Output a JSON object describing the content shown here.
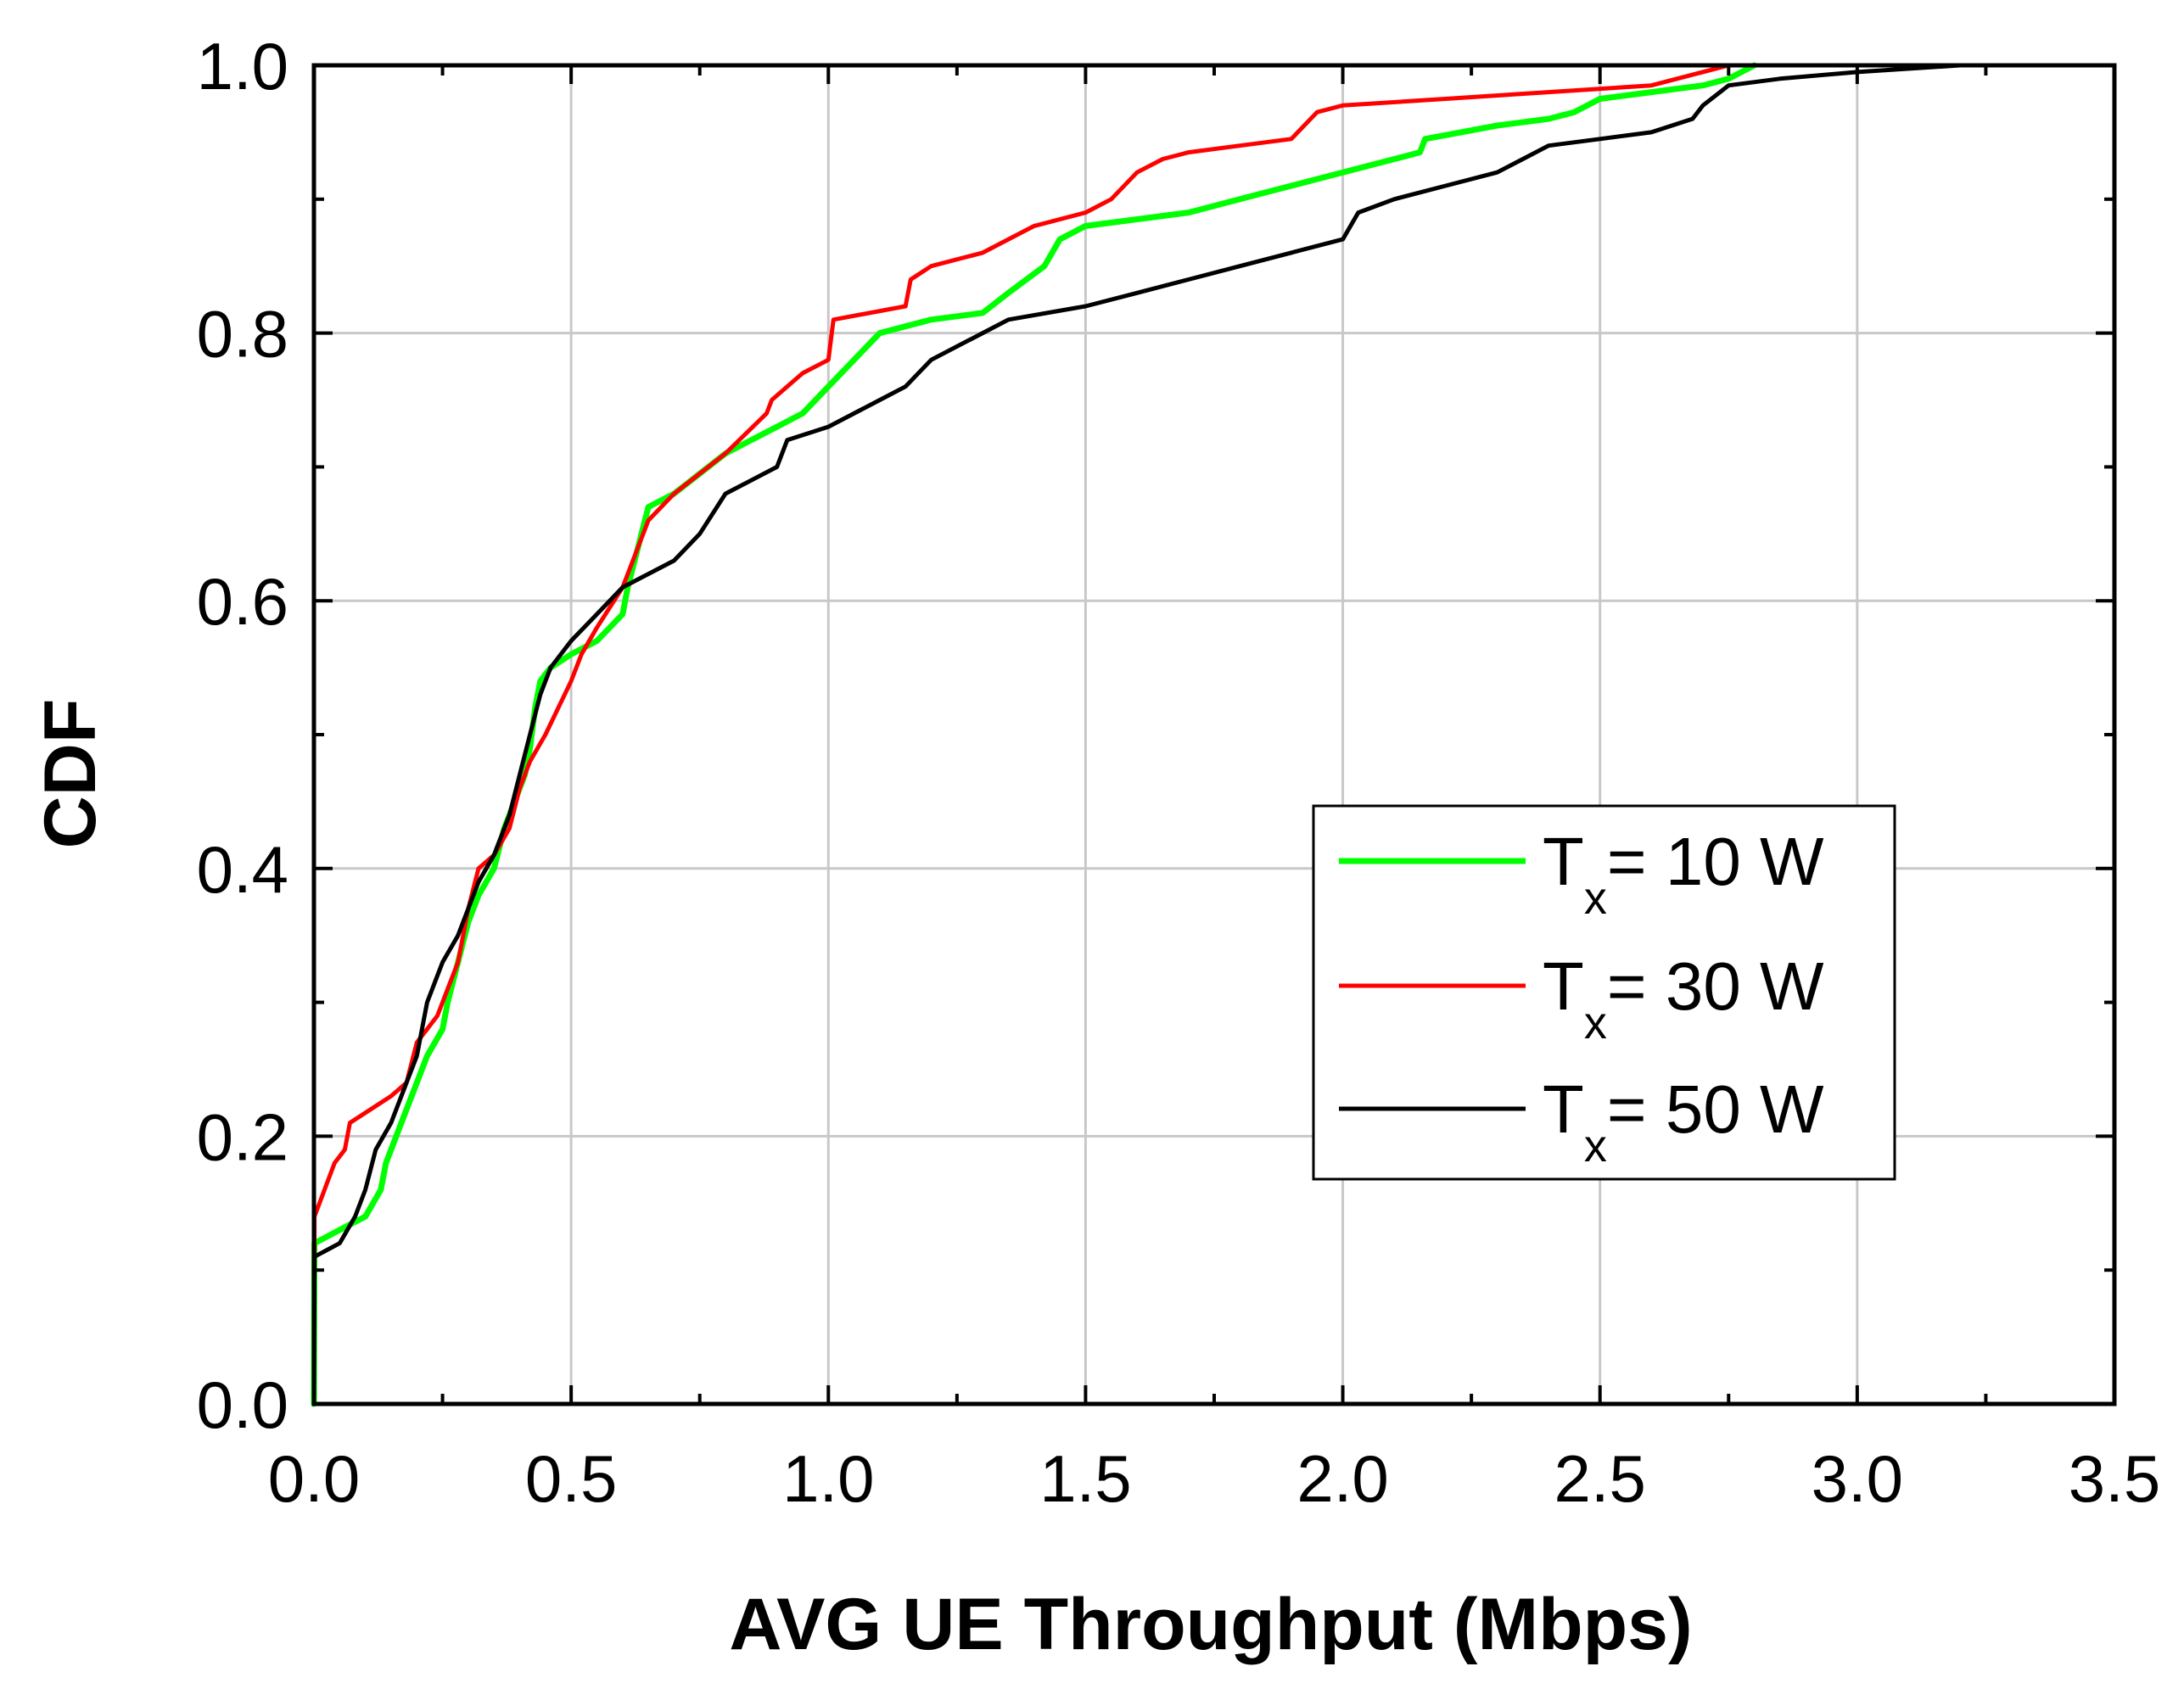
{
  "chart_data": {
    "type": "line",
    "title": "",
    "xlabel": "AVG UE Throughput (Mbps)",
    "ylabel": "CDF",
    "xlim": [
      0.0,
      3.5
    ],
    "ylim": [
      0.0,
      1.0
    ],
    "xticks": [
      0.0,
      0.5,
      1.0,
      1.5,
      2.0,
      2.5,
      3.0,
      3.5
    ],
    "yticks": [
      0.0,
      0.2,
      0.4,
      0.6,
      0.8,
      1.0
    ],
    "xtick_labels": [
      "0.0",
      "0.5",
      "1.0",
      "1.5",
      "2.0",
      "2.5",
      "3.0",
      "3.5"
    ],
    "ytick_labels": [
      "0.0",
      "0.2",
      "0.4",
      "0.6",
      "0.8",
      "1.0"
    ],
    "grid": true,
    "legend_position": "center-right",
    "series": [
      {
        "name": "Tx= 10 W",
        "label_main": "T",
        "label_sub": "x",
        "label_rest": "= 10 W",
        "color": "#00ff00",
        "x": [
          0.0,
          0.001,
          0.05,
          0.1,
          0.13,
          0.14,
          0.16,
          0.18,
          0.2,
          0.22,
          0.25,
          0.26,
          0.28,
          0.3,
          0.32,
          0.35,
          0.37,
          0.39,
          0.41,
          0.42,
          0.43,
          0.44,
          0.46,
          0.5,
          0.55,
          0.6,
          0.61,
          0.63,
          0.65,
          0.7,
          0.8,
          0.85,
          0.9,
          0.95,
          1.0,
          1.1,
          1.2,
          1.3,
          1.35,
          1.42,
          1.45,
          1.5,
          1.6,
          1.7,
          1.8,
          1.9,
          2.0,
          2.1,
          2.15,
          2.16,
          2.3,
          2.4,
          2.45,
          2.5,
          2.6,
          2.7,
          2.75,
          2.8
        ],
        "y": [
          0.0,
          0.12,
          0.13,
          0.14,
          0.16,
          0.18,
          0.2,
          0.22,
          0.24,
          0.26,
          0.28,
          0.3,
          0.33,
          0.36,
          0.38,
          0.4,
          0.43,
          0.45,
          0.47,
          0.49,
          0.52,
          0.54,
          0.55,
          0.56,
          0.57,
          0.59,
          0.61,
          0.64,
          0.67,
          0.68,
          0.71,
          0.72,
          0.73,
          0.74,
          0.76,
          0.8,
          0.81,
          0.815,
          0.83,
          0.85,
          0.87,
          0.88,
          0.885,
          0.89,
          0.9,
          0.91,
          0.92,
          0.93,
          0.935,
          0.945,
          0.955,
          0.96,
          0.965,
          0.975,
          0.98,
          0.985,
          0.99,
          1.0
        ]
      },
      {
        "name": "Tx= 30 W",
        "label_main": "T",
        "label_sub": "x",
        "label_rest": "= 30 W",
        "color": "#ff0000",
        "x": [
          0.0,
          0.001,
          0.04,
          0.06,
          0.07,
          0.15,
          0.18,
          0.2,
          0.24,
          0.26,
          0.28,
          0.3,
          0.32,
          0.35,
          0.38,
          0.4,
          0.42,
          0.45,
          0.5,
          0.52,
          0.55,
          0.6,
          0.62,
          0.65,
          0.7,
          0.8,
          0.88,
          0.89,
          0.95,
          1.0,
          1.01,
          1.15,
          1.16,
          1.2,
          1.3,
          1.4,
          1.5,
          1.55,
          1.6,
          1.65,
          1.7,
          1.8,
          1.9,
          1.95,
          2.0,
          2.2,
          2.4,
          2.6,
          2.75
        ],
        "y": [
          0.0,
          0.14,
          0.18,
          0.19,
          0.21,
          0.23,
          0.24,
          0.27,
          0.29,
          0.31,
          0.33,
          0.37,
          0.4,
          0.41,
          0.43,
          0.46,
          0.48,
          0.5,
          0.54,
          0.56,
          0.58,
          0.61,
          0.63,
          0.66,
          0.68,
          0.71,
          0.74,
          0.75,
          0.77,
          0.78,
          0.81,
          0.82,
          0.84,
          0.85,
          0.86,
          0.88,
          0.89,
          0.9,
          0.92,
          0.93,
          0.935,
          0.94,
          0.945,
          0.965,
          0.97,
          0.975,
          0.98,
          0.985,
          1.0
        ]
      },
      {
        "name": "Tx= 50 W",
        "label_main": "T",
        "label_sub": "x",
        "label_rest": "= 50 W",
        "color": "#000000",
        "x": [
          0.0,
          0.001,
          0.05,
          0.08,
          0.1,
          0.12,
          0.15,
          0.18,
          0.2,
          0.22,
          0.25,
          0.28,
          0.3,
          0.32,
          0.35,
          0.38,
          0.4,
          0.42,
          0.44,
          0.46,
          0.5,
          0.55,
          0.6,
          0.65,
          0.7,
          0.75,
          0.8,
          0.9,
          0.92,
          1.0,
          1.1,
          1.15,
          1.2,
          1.3,
          1.35,
          1.5,
          1.6,
          1.7,
          1.8,
          1.9,
          2.0,
          2.03,
          2.1,
          2.2,
          2.3,
          2.35,
          2.4,
          2.5,
          2.6,
          2.68,
          2.7,
          2.75,
          2.85,
          3.0,
          3.2
        ],
        "y": [
          0.0,
          0.11,
          0.12,
          0.14,
          0.16,
          0.19,
          0.21,
          0.24,
          0.26,
          0.3,
          0.33,
          0.35,
          0.37,
          0.39,
          0.41,
          0.44,
          0.47,
          0.5,
          0.53,
          0.55,
          0.57,
          0.59,
          0.61,
          0.62,
          0.63,
          0.65,
          0.68,
          0.7,
          0.72,
          0.73,
          0.75,
          0.76,
          0.78,
          0.8,
          0.81,
          0.82,
          0.83,
          0.84,
          0.85,
          0.86,
          0.87,
          0.89,
          0.9,
          0.91,
          0.92,
          0.93,
          0.94,
          0.945,
          0.95,
          0.96,
          0.97,
          0.985,
          0.99,
          0.995,
          1.0
        ]
      }
    ]
  }
}
